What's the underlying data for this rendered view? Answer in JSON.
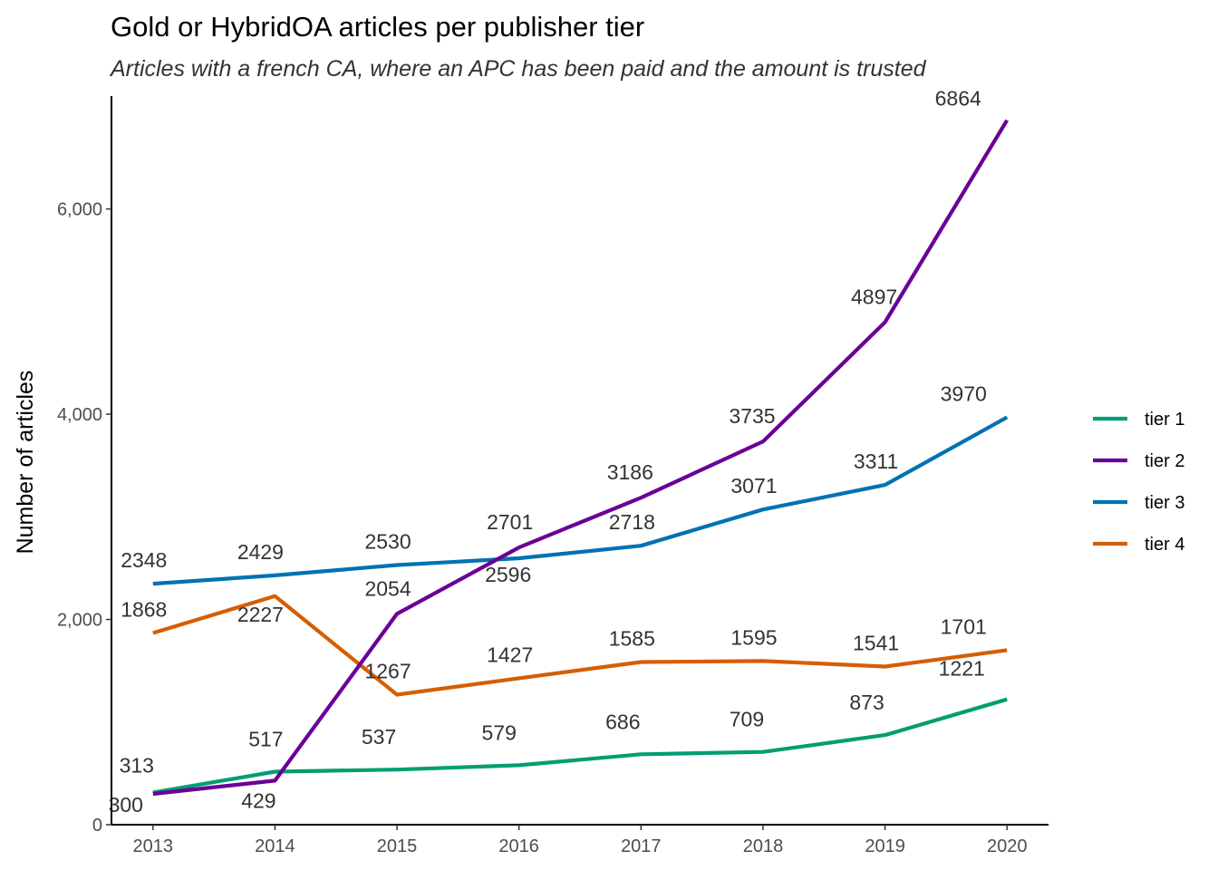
{
  "chart_data": {
    "type": "line",
    "title": "Gold or HybridOA articles per publisher tier",
    "subtitle": "Articles with a french CA, where an APC has been paid and the amount is trusted",
    "xlabel": "",
    "ylabel": "Number of articles",
    "x": [
      2013,
      2014,
      2015,
      2016,
      2017,
      2018,
      2019,
      2020
    ],
    "x_tick_labels": [
      "2013",
      "2014",
      "2015",
      "2016",
      "2017",
      "2018",
      "2019",
      "2020"
    ],
    "y_ticks": [
      0,
      2000,
      4000,
      6000
    ],
    "y_tick_labels": [
      "0",
      "2,000",
      "4,000",
      "6,000"
    ],
    "ylim": [
      0,
      7100
    ],
    "xlim": [
      2012.66,
      2020.34
    ],
    "grid": false,
    "legend_position": "right",
    "series": [
      {
        "name": "tier 1",
        "color": "#009E73",
        "values": [
          313,
          517,
          537,
          579,
          686,
          709,
          873,
          1221
        ]
      },
      {
        "name": "tier 2",
        "color": "#6A0098",
        "values": [
          300,
          429,
          2054,
          2701,
          3186,
          3735,
          4897,
          6864
        ]
      },
      {
        "name": "tier 3",
        "color": "#0072B2",
        "values": [
          2348,
          2429,
          2530,
          2596,
          2718,
          3071,
          3311,
          3970
        ]
      },
      {
        "name": "tier 4",
        "color": "#D55E00",
        "values": [
          1868,
          2227,
          1267,
          1427,
          1585,
          1595,
          1541,
          1701
        ]
      }
    ]
  }
}
